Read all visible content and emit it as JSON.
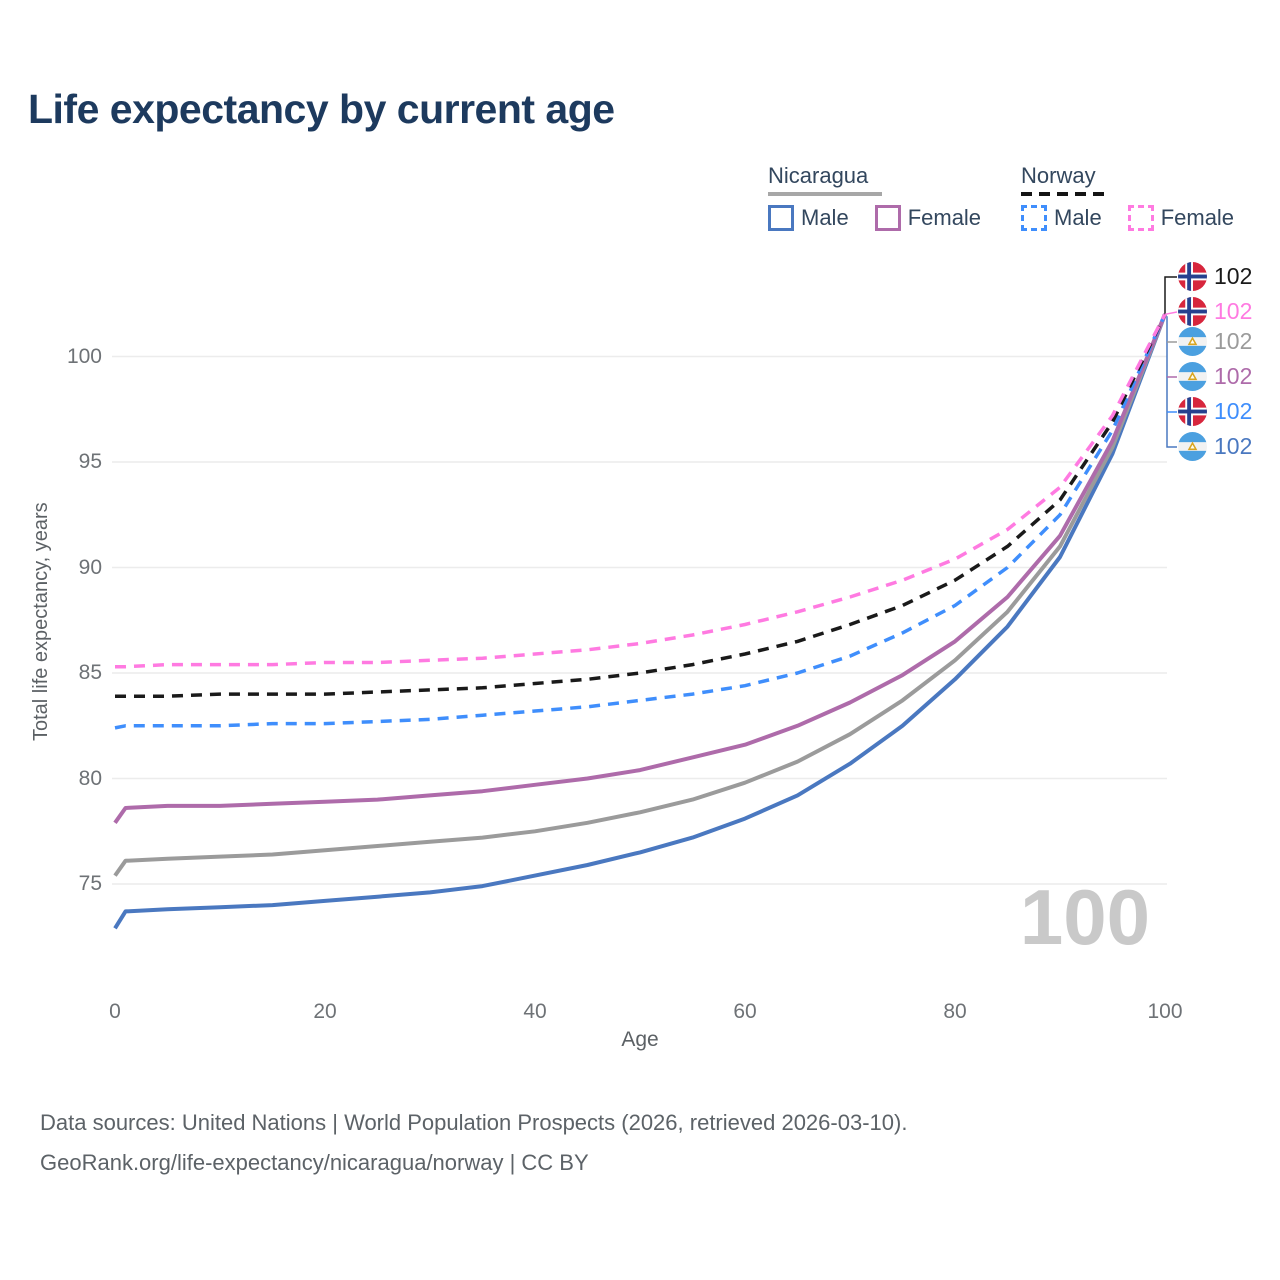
{
  "title": "Life expectancy by current age",
  "legend": {
    "groups": [
      {
        "label": "Nicaragua",
        "line_style": "solid",
        "line_color": "#a7a7a7",
        "items": [
          {
            "label": "Male",
            "color": "#4a78c0",
            "style": "solid"
          },
          {
            "label": "Female",
            "color": "#ae6baa",
            "style": "solid"
          }
        ]
      },
      {
        "label": "Norway",
        "line_style": "dashed",
        "line_color": "#141414",
        "items": [
          {
            "label": "Male",
            "color": "#3f8efc",
            "style": "dashed"
          },
          {
            "label": "Female",
            "color": "#ff7ae1",
            "style": "dashed"
          }
        ]
      }
    ]
  },
  "axes": {
    "y": {
      "title": "Total life expectancy, years",
      "ticks": [
        75,
        80,
        85,
        90,
        95,
        100
      ]
    },
    "x": {
      "title": "Age",
      "ticks": [
        0,
        20,
        40,
        60,
        80,
        100
      ]
    }
  },
  "watermark": "100",
  "end_labels": [
    {
      "country": "Norway",
      "flag": "norway-flag-icon",
      "value": "102",
      "color": "#1a1a1a"
    },
    {
      "country": "Norway",
      "flag": "norway-flag-icon",
      "value": "102",
      "color": "#ff7ae1"
    },
    {
      "country": "Nicaragua",
      "flag": "nicaragua-flag-icon",
      "value": "102",
      "color": "#9b9b9b"
    },
    {
      "country": "Nicaragua",
      "flag": "nicaragua-flag-icon",
      "value": "102",
      "color": "#ae6baa"
    },
    {
      "country": "Norway",
      "flag": "norway-flag-icon",
      "value": "102",
      "color": "#3f8efc"
    },
    {
      "country": "Nicaragua",
      "flag": "nicaragua-flag-icon",
      "value": "102",
      "color": "#4a78c0"
    }
  ],
  "footer": {
    "line1": "Data sources: United Nations | World Population Prospects (2026, retrieved 2026-03-10).",
    "line2": "GeoRank.org/life-expectancy/nicaragua/norway | CC BY"
  },
  "chart_data": {
    "type": "line",
    "title": "Life expectancy by current age",
    "xlabel": "Age",
    "ylabel": "Total life expectancy, years",
    "xlim": [
      0,
      100
    ],
    "ylim": [
      72,
      103
    ],
    "grid": "horizontal",
    "legend_position": "top-right",
    "x": [
      0,
      1,
      5,
      10,
      15,
      20,
      25,
      30,
      35,
      40,
      45,
      50,
      55,
      60,
      65,
      70,
      75,
      80,
      85,
      90,
      95,
      100
    ],
    "series": [
      {
        "name": "Nicaragua Male",
        "country": "Nicaragua",
        "sex": "male",
        "style": "solid",
        "color": "#4a78c0",
        "values": [
          72.9,
          73.7,
          73.8,
          73.9,
          74.0,
          74.2,
          74.4,
          74.6,
          74.9,
          75.4,
          75.9,
          76.5,
          77.2,
          78.1,
          79.2,
          80.7,
          82.5,
          84.7,
          87.2,
          90.5,
          95.4,
          102
        ]
      },
      {
        "name": "Nicaragua (both sexes)",
        "country": "Nicaragua",
        "sex": "total",
        "style": "solid",
        "color": "#9b9b9b",
        "values": [
          75.4,
          76.1,
          76.2,
          76.3,
          76.4,
          76.6,
          76.8,
          77.0,
          77.2,
          77.5,
          77.9,
          78.4,
          79.0,
          79.8,
          80.8,
          82.1,
          83.7,
          85.6,
          87.9,
          91.0,
          95.7,
          102
        ]
      },
      {
        "name": "Nicaragua Female",
        "country": "Nicaragua",
        "sex": "female",
        "style": "solid",
        "color": "#ae6baa",
        "values": [
          77.9,
          78.6,
          78.7,
          78.7,
          78.8,
          78.9,
          79.0,
          79.2,
          79.4,
          79.7,
          80.0,
          80.4,
          81.0,
          81.6,
          82.5,
          83.6,
          84.9,
          86.5,
          88.6,
          91.5,
          96.0,
          102
        ]
      },
      {
        "name": "Norway Male",
        "country": "Norway",
        "sex": "male",
        "style": "dashed",
        "color": "#3f8efc",
        "values": [
          82.4,
          82.5,
          82.5,
          82.5,
          82.6,
          82.6,
          82.7,
          82.8,
          83.0,
          83.2,
          83.4,
          83.7,
          84.0,
          84.4,
          85.0,
          85.8,
          86.9,
          88.2,
          90.0,
          92.5,
          96.5,
          102
        ]
      },
      {
        "name": "Norway (both sexes)",
        "country": "Norway",
        "sex": "total",
        "style": "dashed",
        "color": "#1a1a1a",
        "values": [
          83.9,
          83.9,
          83.9,
          84.0,
          84.0,
          84.0,
          84.1,
          84.2,
          84.3,
          84.5,
          84.7,
          85.0,
          85.4,
          85.9,
          86.5,
          87.3,
          88.2,
          89.4,
          91.0,
          93.2,
          96.9,
          102
        ]
      },
      {
        "name": "Norway Female",
        "country": "Norway",
        "sex": "female",
        "style": "dashed",
        "color": "#ff7ae1",
        "values": [
          85.3,
          85.3,
          85.4,
          85.4,
          85.4,
          85.5,
          85.5,
          85.6,
          85.7,
          85.9,
          86.1,
          86.4,
          86.8,
          87.3,
          87.9,
          88.6,
          89.4,
          90.4,
          91.8,
          93.8,
          97.2,
          102
        ]
      }
    ],
    "end_value_label": "102"
  }
}
